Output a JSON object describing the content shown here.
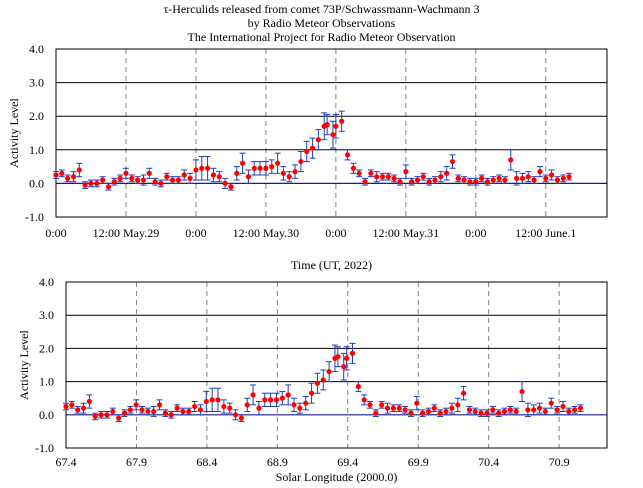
{
  "header": {
    "title_line1": "τ-Herculids released  from comet 73P/Schwassmann-Wachmann  3",
    "title_line2": "by Radio Meteor Observations",
    "title_line3": "The International Project for Radio Meteor Observation"
  },
  "colors": {
    "marker": "#ff0000",
    "error_bar": "#1f3fbf",
    "baseline": "#1a1a8c",
    "gridline": "#000000",
    "dashed": "#808080"
  },
  "chart_data": [
    {
      "type": "scatter",
      "name": "time-plot",
      "ylabel": "Activity Level",
      "xlabel": "Time (UT, 2022)",
      "ylim": [
        -1.0,
        4.0
      ],
      "yticks": [
        "-1.0",
        "0.0",
        "1.0",
        "2.0",
        "3.0",
        "4.0"
      ],
      "xticks": [
        "0:00",
        "12:00 May.29",
        "0:00",
        "12:00 May.30",
        "0:00",
        "12:00 May.31",
        "0:00",
        "12:00 June.1"
      ],
      "x_unit": "hours since 2022-05-29 0:00 UT",
      "points": [
        [
          0.0,
          0.25,
          0.1
        ],
        [
          1.0,
          0.3,
          0.1
        ],
        [
          2.0,
          0.15,
          0.1
        ],
        [
          3.0,
          0.2,
          0.15
        ],
        [
          4.0,
          0.4,
          0.2
        ],
        [
          5.0,
          -0.05,
          0.1
        ],
        [
          6.0,
          0.0,
          0.1
        ],
        [
          7.0,
          0.0,
          0.1
        ],
        [
          8.0,
          0.1,
          0.1
        ],
        [
          9.0,
          -0.1,
          0.1
        ],
        [
          10.0,
          0.05,
          0.1
        ],
        [
          11.0,
          0.15,
          0.1
        ],
        [
          12.0,
          0.3,
          0.15
        ],
        [
          13.0,
          0.15,
          0.1
        ],
        [
          14.0,
          0.1,
          0.1
        ],
        [
          15.0,
          0.1,
          0.15
        ],
        [
          16.0,
          0.3,
          0.15
        ],
        [
          17.0,
          0.05,
          0.1
        ],
        [
          18.0,
          0.0,
          0.1
        ],
        [
          19.0,
          0.2,
          0.1
        ],
        [
          20.0,
          0.1,
          0.1
        ],
        [
          21.0,
          0.1,
          0.1
        ],
        [
          22.0,
          0.25,
          0.15
        ],
        [
          23.0,
          0.15,
          0.15
        ],
        [
          24.0,
          0.4,
          0.3
        ],
        [
          25.0,
          0.45,
          0.35
        ],
        [
          26.0,
          0.45,
          0.35
        ],
        [
          27.0,
          0.25,
          0.2
        ],
        [
          28.0,
          0.2,
          0.15
        ],
        [
          29.0,
          0.0,
          0.15
        ],
        [
          30.0,
          -0.1,
          0.1
        ],
        [
          31.0,
          0.3,
          0.2
        ],
        [
          32.0,
          0.6,
          0.3
        ],
        [
          33.0,
          0.2,
          0.2
        ],
        [
          34.0,
          0.45,
          0.2
        ],
        [
          35.0,
          0.45,
          0.2
        ],
        [
          36.0,
          0.45,
          0.2
        ],
        [
          37.0,
          0.5,
          0.2
        ],
        [
          38.0,
          0.6,
          0.3
        ],
        [
          39.0,
          0.3,
          0.2
        ],
        [
          40.0,
          0.2,
          0.15
        ],
        [
          41.0,
          0.35,
          0.2
        ],
        [
          42.0,
          0.65,
          0.3
        ],
        [
          43.0,
          0.95,
          0.3
        ],
        [
          44.0,
          1.05,
          0.3
        ],
        [
          45.0,
          1.3,
          0.3
        ],
        [
          46.0,
          1.7,
          0.4
        ],
        [
          46.5,
          1.75,
          0.3
        ],
        [
          47.5,
          1.45,
          0.4
        ],
        [
          48.0,
          1.7,
          0.35
        ],
        [
          49.0,
          1.85,
          0.3
        ],
        [
          50.0,
          0.85,
          0.15
        ],
        [
          51.0,
          0.45,
          0.15
        ],
        [
          52.0,
          0.3,
          0.1
        ],
        [
          53.0,
          0.05,
          0.1
        ],
        [
          54.0,
          0.3,
          0.1
        ],
        [
          55.0,
          0.2,
          0.15
        ],
        [
          56.0,
          0.2,
          0.1
        ],
        [
          57.0,
          0.2,
          0.1
        ],
        [
          58.0,
          0.15,
          0.1
        ],
        [
          59.0,
          0.05,
          0.1
        ],
        [
          60.0,
          0.35,
          0.2
        ],
        [
          61.0,
          0.05,
          0.1
        ],
        [
          62.0,
          0.1,
          0.1
        ],
        [
          63.0,
          0.2,
          0.1
        ],
        [
          64.0,
          0.05,
          0.1
        ],
        [
          65.0,
          0.1,
          0.1
        ],
        [
          66.0,
          0.2,
          0.15
        ],
        [
          67.0,
          0.3,
          0.2
        ],
        [
          68.0,
          0.65,
          0.2
        ],
        [
          69.0,
          0.15,
          0.1
        ],
        [
          70.0,
          0.1,
          0.1
        ],
        [
          71.0,
          0.05,
          0.1
        ],
        [
          72.0,
          0.05,
          0.1
        ],
        [
          73.0,
          0.15,
          0.1
        ],
        [
          74.0,
          0.05,
          0.1
        ],
        [
          75.0,
          0.1,
          0.1
        ],
        [
          76.0,
          0.15,
          0.1
        ],
        [
          77.0,
          0.1,
          0.1
        ],
        [
          78.0,
          0.7,
          0.3
        ],
        [
          79.0,
          0.15,
          0.2
        ],
        [
          80.0,
          0.15,
          0.15
        ],
        [
          81.0,
          0.2,
          0.15
        ],
        [
          82.0,
          0.1,
          0.1
        ],
        [
          83.0,
          0.35,
          0.15
        ],
        [
          84.0,
          0.15,
          0.1
        ],
        [
          85.0,
          0.25,
          0.15
        ],
        [
          86.0,
          0.1,
          0.1
        ],
        [
          87.0,
          0.15,
          0.1
        ],
        [
          88.0,
          0.2,
          0.1
        ]
      ]
    },
    {
      "type": "scatter",
      "name": "solar-longitude-plot",
      "ylabel": "Activity Level",
      "xlabel": "Solar Longitude  (2000.0)",
      "ylim": [
        -1.0,
        4.0
      ],
      "xlim": [
        67.4,
        71.24
      ],
      "yticks": [
        "-1.0",
        "0.0",
        "1.0",
        "2.0",
        "3.0",
        "4.0"
      ],
      "xticks": [
        "67.4",
        "67.9",
        "68.4",
        "68.9",
        "69.4",
        "69.9",
        "70.4",
        "70.9"
      ],
      "xtick_values": [
        67.4,
        67.9,
        68.4,
        68.9,
        69.4,
        69.9,
        70.4,
        70.9
      ],
      "sl_start": 67.4,
      "sl_per_hour": 0.0415
    }
  ]
}
